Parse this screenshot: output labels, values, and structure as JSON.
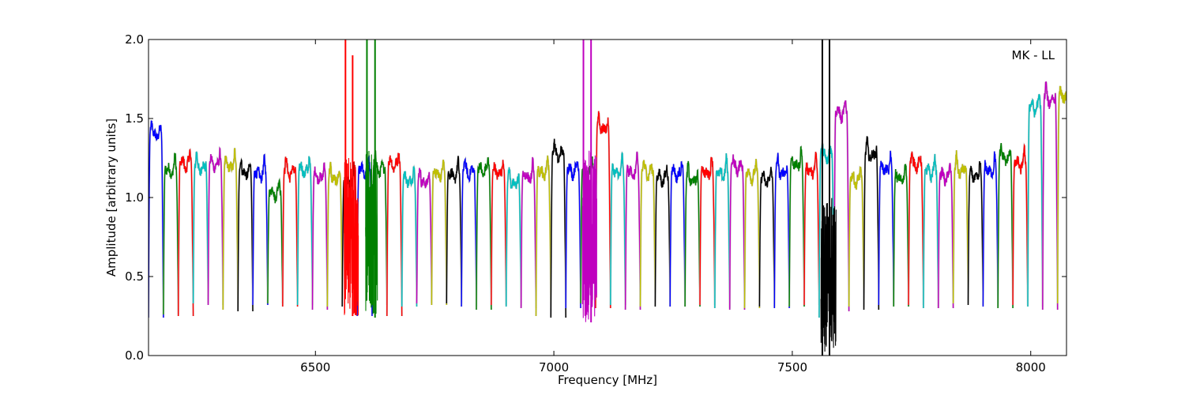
{
  "chart_data": {
    "type": "line",
    "title": "",
    "xlabel": "Frequency [MHz]",
    "ylabel": "Amplitude [arbitrary units]",
    "xlim": [
      6150,
      8075
    ],
    "ylim": [
      0.0,
      2.0
    ],
    "xticks": [
      6500,
      7000,
      7500,
      8000
    ],
    "yticks": [
      0.0,
      0.5,
      1.0,
      1.5,
      2.0
    ],
    "xtick_labels": [
      "6500",
      "7000",
      "7500",
      "8000"
    ],
    "ytick_labels": [
      "0.0",
      "0.5",
      "1.0",
      "1.5",
      "2.0"
    ],
    "annotation": "MK - LL",
    "grid": false,
    "legend": "none",
    "series_colors": [
      "#0000ff",
      "#008000",
      "#ff0000",
      "#00bfbf",
      "#bf00bf",
      "#bfbf00",
      "#000000"
    ],
    "underlay_color": "#bfbfbf",
    "channel_start": 6150,
    "channel_width": 31.25,
    "channel_count": 62,
    "channel_peaks": [
      1.49,
      1.26,
      1.3,
      1.28,
      1.3,
      1.29,
      1.25,
      1.24,
      1.12,
      1.25,
      1.26,
      1.22,
      1.21,
      1.18,
      1.26,
      1.27,
      1.3,
      1.2,
      1.19,
      1.24,
      1.23,
      1.25,
      1.26,
      1.25,
      1.18,
      1.22,
      1.25,
      1.36,
      1.26,
      1.25,
      1.53,
      1.25,
      1.25,
      1.25,
      1.21,
      1.24,
      1.2,
      1.25,
      1.24,
      1.28,
      1.23,
      1.2,
      1.25,
      1.3,
      1.26,
      1.36,
      1.62,
      1.2,
      1.36,
      1.27,
      1.21,
      1.3,
      1.25,
      1.22,
      1.26,
      1.22,
      1.26,
      1.34,
      1.3,
      1.66,
      1.71,
      1.73
    ],
    "channel_floors": [
      0.24,
      0.26,
      0.25,
      0.33,
      0.32,
      0.29,
      0.28,
      0.32,
      0.33,
      0.31,
      0.32,
      0.29,
      0.31,
      0.31,
      0.25,
      0.32,
      0.25,
      0.31,
      0.33,
      0.32,
      0.33,
      0.31,
      0.29,
      0.32,
      0.31,
      0.3,
      0.25,
      0.24,
      0.3,
      0.33,
      0.3,
      0.32,
      0.29,
      0.31,
      0.31,
      0.31,
      0.31,
      0.32,
      0.3,
      0.29,
      0.3,
      0.31,
      0.3,
      0.31,
      0.32,
      0.24,
      0.28,
      0.31,
      0.29,
      0.32,
      0.31,
      0.32,
      0.3,
      0.3,
      0.33,
      0.32,
      0.31,
      0.3,
      0.32,
      0.31,
      0.29,
      0.33
    ],
    "spikes": [
      {
        "x": 6563,
        "ymin": 0.6,
        "ymax": 2.0,
        "color": "#ff0000"
      },
      {
        "x": 6578,
        "ymin": 0.25,
        "ymax": 1.9,
        "color": "#ff0000"
      },
      {
        "x": 6608,
        "ymin": 0.4,
        "ymax": 2.0,
        "color": "#008000"
      },
      {
        "x": 6625,
        "ymin": 0.24,
        "ymax": 2.0,
        "color": "#008000"
      },
      {
        "x": 7062,
        "ymin": 0.66,
        "ymax": 2.0,
        "color": "#bf00bf"
      },
      {
        "x": 7078,
        "ymin": 0.21,
        "ymax": 2.0,
        "color": "#bf00bf"
      },
      {
        "x": 7563,
        "ymin": 0.0,
        "ymax": 2.0,
        "color": "#000000"
      },
      {
        "x": 7578,
        "ymin": 0.0,
        "ymax": 2.0,
        "color": "#000000"
      }
    ],
    "noisy_regions": [
      {
        "x0": 6560,
        "x1": 6590,
        "ymin": 0.25,
        "ymax": 1.25,
        "color": "#ff0000"
      },
      {
        "x0": 6605,
        "x1": 6630,
        "ymin": 0.25,
        "ymax": 1.3,
        "color": "#008000"
      },
      {
        "x0": 7060,
        "x1": 7090,
        "ymin": 0.21,
        "ymax": 1.3,
        "color": "#bf00bf"
      },
      {
        "x0": 7560,
        "x1": 7592,
        "ymin": 0.02,
        "ymax": 1.0,
        "color": "#000000"
      }
    ]
  }
}
